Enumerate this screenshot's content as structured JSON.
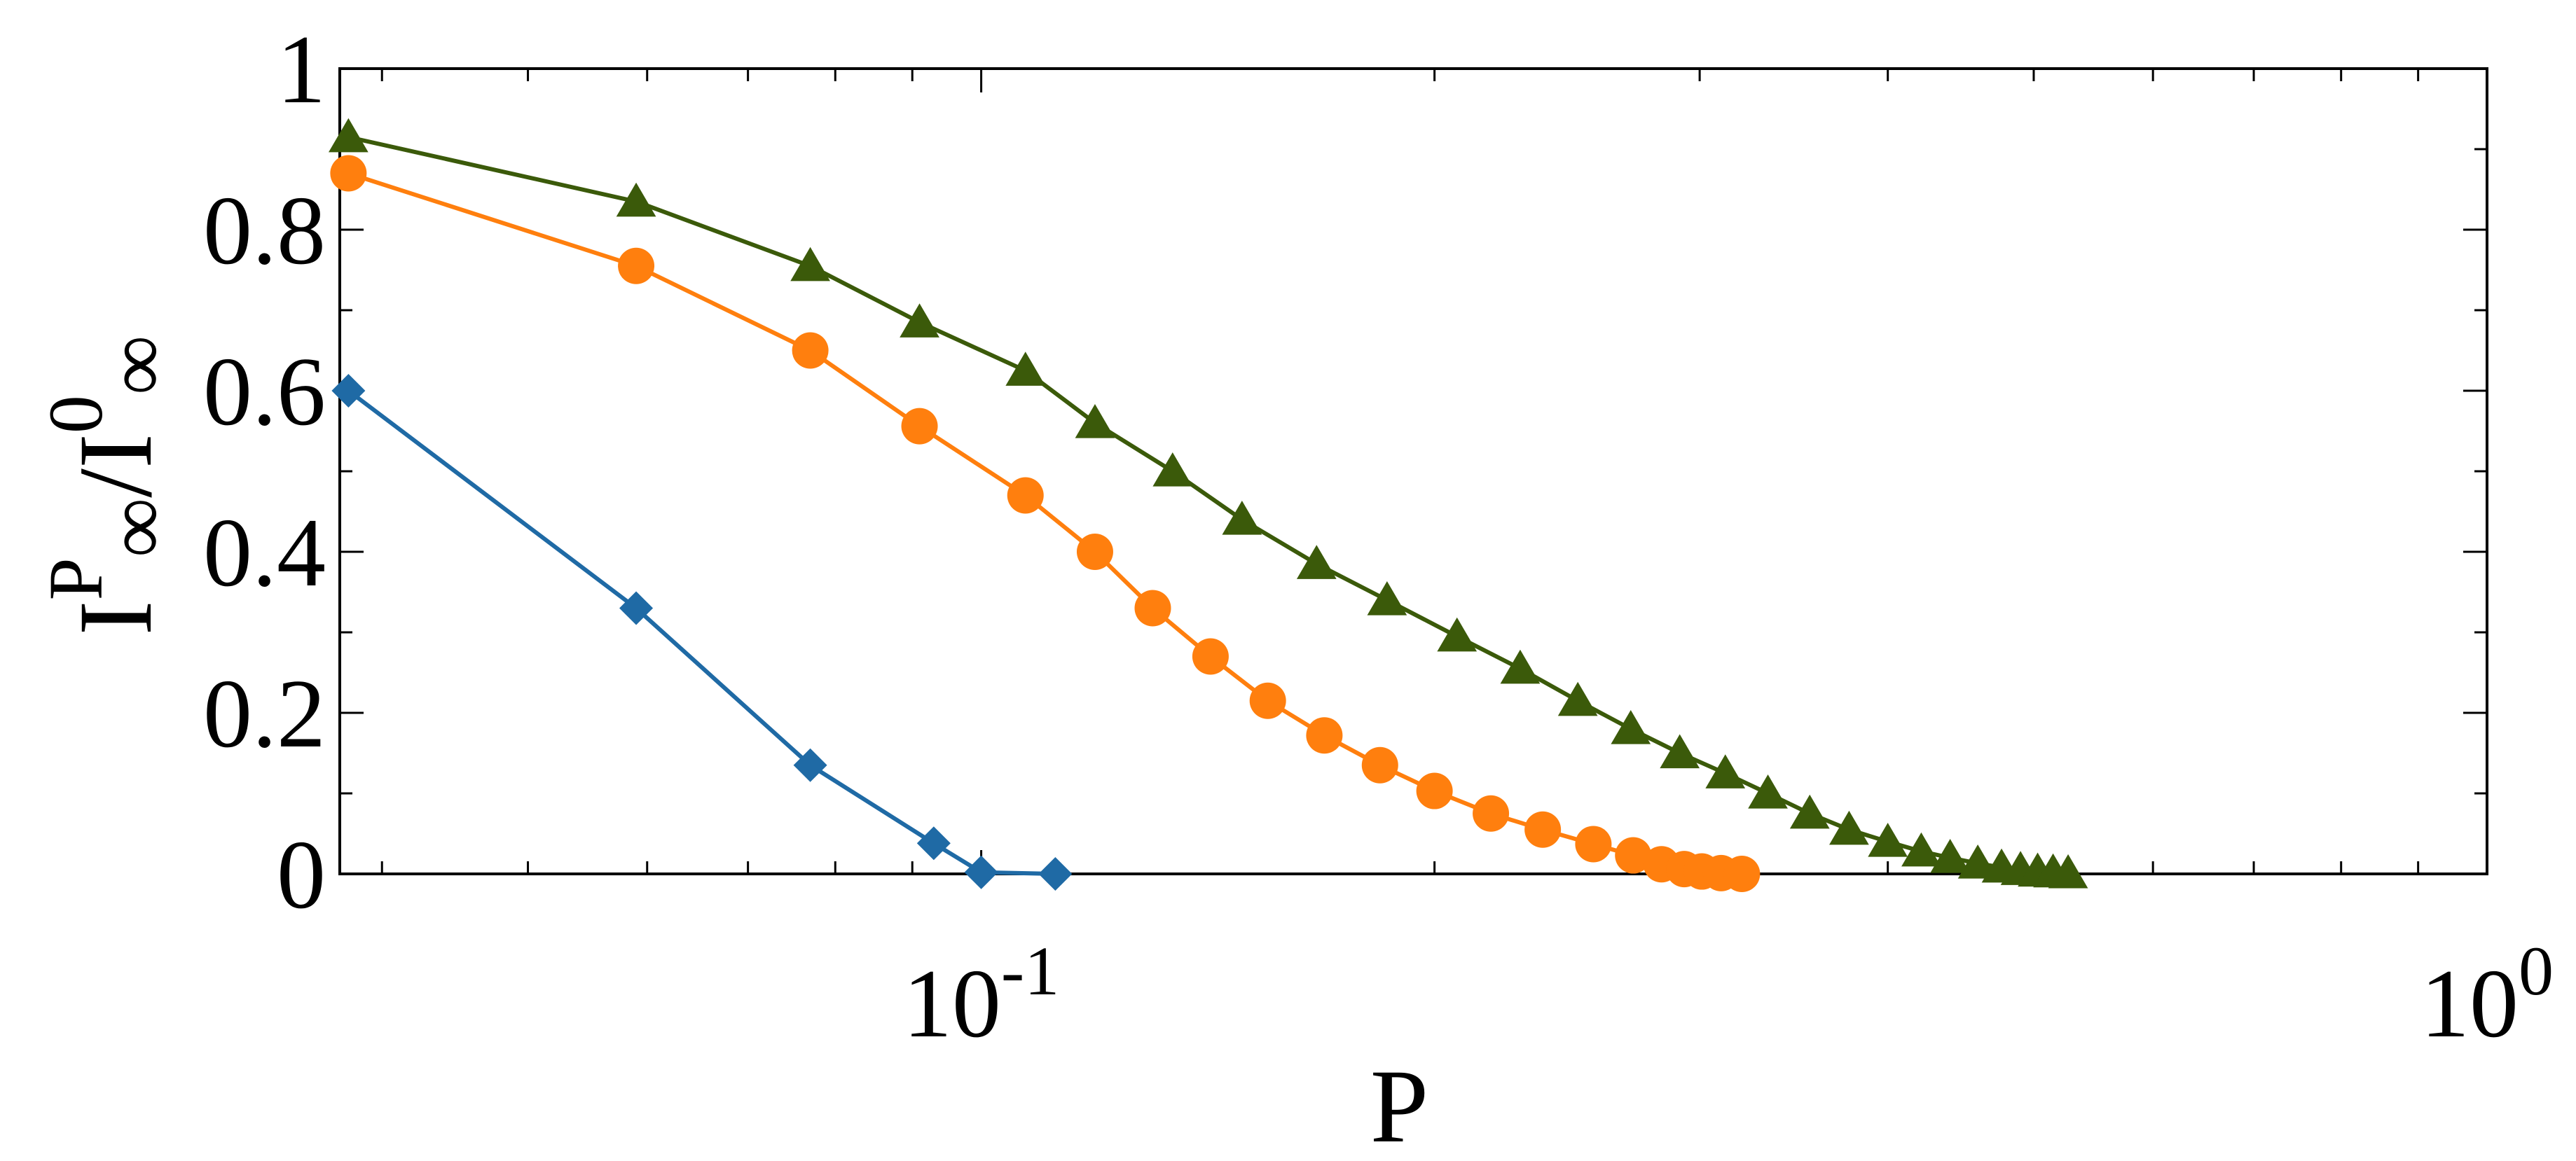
{
  "chart_data": {
    "type": "line",
    "xscale": "log",
    "xlim": [
      0.0375,
      1.0
    ],
    "ylim": [
      0,
      1.0
    ],
    "grid": false,
    "legend": "none",
    "xlabel": "P",
    "ylabel": {
      "main": "I",
      "sup1": "P",
      "sub1": "∞",
      "sep": "/",
      "main2": "I",
      "sup2": "0",
      "sub2": "∞"
    },
    "x_ticks": [
      {
        "value": 0.1,
        "base": "10",
        "exp": "-1"
      },
      {
        "value": 1.0,
        "base": "10",
        "exp": "0"
      }
    ],
    "y_ticks": [
      {
        "value": 0,
        "label": "0"
      },
      {
        "value": 0.2,
        "label": "0.2"
      },
      {
        "value": 0.4,
        "label": "0.4"
      },
      {
        "value": 0.6,
        "label": "0.6"
      },
      {
        "value": 0.8,
        "label": "0.8"
      },
      {
        "value": 1.0,
        "label": "1"
      }
    ],
    "series": [
      {
        "marker": "diamond",
        "color": "#1f6aa5",
        "x": [
          0.038,
          0.059,
          0.077,
          0.093,
          0.1,
          0.112
        ],
        "y": [
          0.6,
          0.33,
          0.135,
          0.038,
          0.002,
          0.0
        ]
      },
      {
        "marker": "circle",
        "color": "#ff7f0e",
        "x": [
          0.038,
          0.059,
          0.077,
          0.091,
          0.107,
          0.119,
          0.13,
          0.142,
          0.155,
          0.169,
          0.184,
          0.2,
          0.218,
          0.236,
          0.255,
          0.271,
          0.283,
          0.293,
          0.301,
          0.31,
          0.32
        ],
        "y": [
          0.87,
          0.755,
          0.65,
          0.556,
          0.47,
          0.4,
          0.33,
          0.27,
          0.215,
          0.172,
          0.135,
          0.103,
          0.075,
          0.055,
          0.037,
          0.023,
          0.012,
          0.006,
          0.003,
          0.001,
          0.0
        ]
      },
      {
        "marker": "triangle",
        "color": "#3b5a0a",
        "x": [
          0.038,
          0.059,
          0.077,
          0.091,
          0.107,
          0.119,
          0.134,
          0.149,
          0.167,
          0.186,
          0.207,
          0.228,
          0.249,
          0.27,
          0.291,
          0.312,
          0.333,
          0.355,
          0.377,
          0.4,
          0.421,
          0.44,
          0.459,
          0.476,
          0.49,
          0.503,
          0.515,
          0.527
        ],
        "y": [
          0.915,
          0.835,
          0.755,
          0.685,
          0.625,
          0.56,
          0.5,
          0.44,
          0.385,
          0.34,
          0.295,
          0.255,
          0.215,
          0.18,
          0.15,
          0.125,
          0.1,
          0.075,
          0.055,
          0.04,
          0.028,
          0.02,
          0.013,
          0.008,
          0.005,
          0.003,
          0.002,
          0.001
        ]
      }
    ]
  }
}
